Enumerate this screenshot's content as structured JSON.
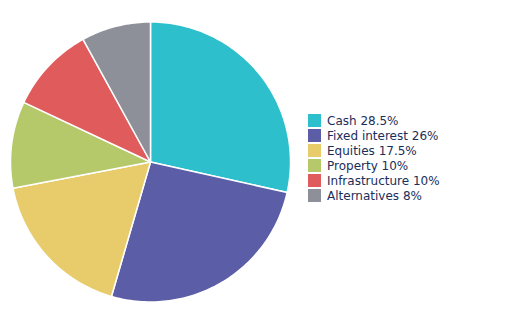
{
  "chart_data": {
    "type": "pie",
    "categories": [
      "Cash 28.5%",
      "Fixed interest 26%",
      "Equities 17.5%",
      "Property 10%",
      "Infrastructure 10%",
      "Alternatives 8%"
    ],
    "values": [
      28.5,
      26.0,
      17.5,
      10.0,
      10.0,
      8.0
    ],
    "colors": [
      "#2dbfcc",
      "#5b5ea6",
      "#e8cb6a",
      "#b5c96a",
      "#e05c5c",
      "#8e9099"
    ],
    "legend": "right"
  }
}
